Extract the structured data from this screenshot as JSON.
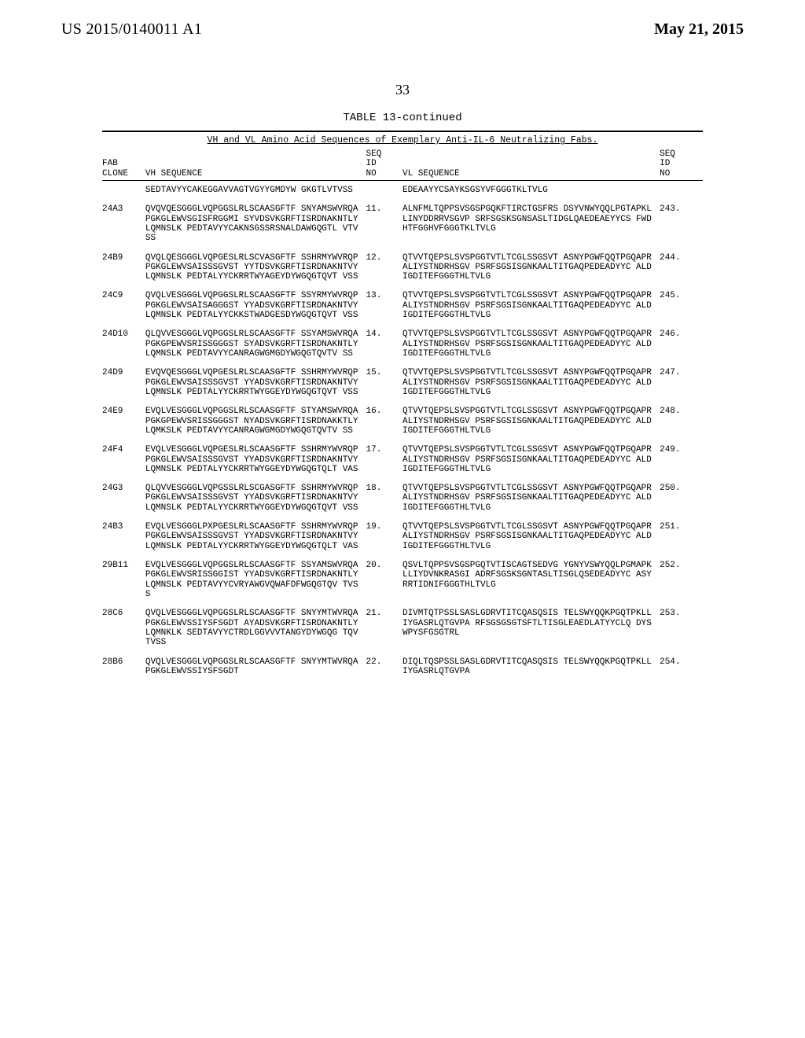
{
  "header": {
    "pub_number": "US 2015/0140011 A1",
    "pub_date": "May 21, 2015",
    "page_number": "33"
  },
  "table": {
    "caption": "TABLE 13-continued",
    "title": "VH and VL Amino Acid Sequences of Exemplary Anti-IL-6 Neutralizing Fabs.",
    "columns": {
      "clone": "FAB CLONE",
      "vh": "VH SEQUENCE",
      "seqid1_l1": "SEQ",
      "seqid1_l2": "ID",
      "seqid1_l3": "NO",
      "vl": "VL SEQUENCE",
      "seqid2_l1": "SEQ",
      "seqid2_l2": "ID",
      "seqid2_l3": "NO"
    },
    "rows": [
      {
        "clone": "",
        "vh": "SEDTAVYYCAKEGGAVVAGTVGYYGMDYW GKGTLVTVSS",
        "sid1": "",
        "vl": "EDEAAYYCSAYKSGSYVFGGGTKLTVLG",
        "sid2": ""
      },
      {
        "clone": "24A3",
        "vh": "QVQVQESGGGLVQPGGSLRLSCAASGFTF SNYAMSWVRQAPGKGLEWVSGISFRGGMI SYVDSVKGRFTISRDNAKNTLYLQMNSLK PEDTAVYYCAKNSGSSRSNALDAWGQGTL VTVSS",
        "sid1": "11.",
        "vl": "ALNFMLTQPPSVSGSPGQKFTIRCTGSFRS DSYVNWYQQLPGTAPKLLINYDDRRVSGVP SRFSGSKSGNSASLTIDGLQAEDEAEYYCS FWDHTFGGHVFGGGTKLTVLG",
        "sid2": "243."
      },
      {
        "clone": "24B9",
        "vh": "QVQLQESGGGLVQPGESLRLSCVASGFTF SSHRMYWVRQPPGKGLEWVSAISSSGVST YYTDSVKGRFTISRDNAKNTVYLQMNSLK PEDTALYYCKRRTWYAGEYDYWGQGTQVT VSS",
        "sid1": "12.",
        "vl": "QTVVTQEPSLSVSPGGTVTLTCGLSSGSVT ASNYPGWFQQTPGQAPRALIYSTNDRHSGV PSRFSGSISGNKAALTITGAQPEDEADYYC ALDIGDITEFGGGTHLTVLG",
        "sid2": "244."
      },
      {
        "clone": "24C9",
        "vh": "QVQLVESGGGLVQPGGSLRLSCAASGFTF SSYRMYWVRQPPGKGLEWVSAISAGGGST YYADSVKGRFTISRDNAKNTVYLQMNSLK PEDTALYYCKKSTWADGESDYWGQGTQVT VSS",
        "sid1": "13.",
        "vl": "QTVVTQEPSLSVSPGGTVTLTCGLSSGSVT ASNYPGWFQQTPGQAPRALIYSTNDRHSGV PSRFSGSISGNKAALTITGAQPEDEADYYC ALDIGDITEFGGGTHLTVLG",
        "sid2": "245."
      },
      {
        "clone": "24D10",
        "vh": "QLQVVESGGGLVQPGGSLRLSCAASGFTF SSYAMSWVRQAPGKGPEWVSRISSGGGST SYADSVKGRFTISRDNAKNTLYLQMNSLK PEDTAVYYCANRAGWGMGDYWGQGTQVTV SS",
        "sid1": "14.",
        "vl": "QTVVTQEPSLSVSPGGTVTLTCGLSSGSVT ASNYPGWFQQTPGQAPRALIYSTNDRHSGV PSRFSGSISGNKAALTITGAQPEDEADYYC ALDIGDITEFGGGTHLTVLG",
        "sid2": "246."
      },
      {
        "clone": "24D9",
        "vh": "EVQVQESGGGLVQPGESLRLSCAASGFTF SSHRMYWVRQPPGKGLEWVSAISSSGVST YYADSVKGRFTISRDNAKNTVYLQMNSLK PEDTALYYCKRRTWYGGEYDYWGQGTQVT VSS",
        "sid1": "15.",
        "vl": "QTVVTQEPSLSVSPGGTVTLTCGLSSGSVT ASNYPGWFQQTPGQAPRALIYSTNDRHSGV PSRFSGSISGNKAALTITGAQPEDEADYYC ALDIGDITEFGGGTHLTVLG",
        "sid2": "247."
      },
      {
        "clone": "24E9",
        "vh": "EVQLVESGGGLVQPGGSLRLSCAASGFTF STYAMSWVRQAPGKGPEWVSRISSGGGST NYADSVKGRFTISRDNAKKTLYLQMKSLK PEDTAVYYCANRAGWGMGDYWGQGTQVTV SS",
        "sid1": "16.",
        "vl": "QTVVTQEPSLSVSPGGTVTLTCGLSSGSVT ASNYPGWFQQTPGQAPRALIYSTNDRHSGV PSRFSGSISGNKAALTITGAQPEDEADYYC ALDIGDITEFGGGTHLTVLG",
        "sid2": "248."
      },
      {
        "clone": "24F4",
        "vh": "EVQLVESGGGLVQPGESLRLSCAASGFTF SSHRMYWVRQPPGKGLEWVSAISSSGVST YYADSVKGRFTISRDNAKNTVYLQMNSLK PEDTALYYCKRRTWYGGEYDYWGQGTQLT VAS",
        "sid1": "17.",
        "vl": "QTVVTQEPSLSVSPGGTVTLTCGLSSGSVT ASNYPGWFQQTPGQAPRALIYSTNDRHSGV PSRFSGSISGNKAALTITGAQPEDEADYYC ALDIGDITEFGGGTHLTVLG",
        "sid2": "249."
      },
      {
        "clone": "24G3",
        "vh": "QLQVVESGGGLVQPGSSLRLSCGASGFTF SSHRMYWVRQPPGKGLEWVSAISSSGVST YYADSVKGRFTISRDNAKNTVYLQMNSLK PEDTALYYCKRRTWYGGEYDYWGQGTQVT VSS",
        "sid1": "18.",
        "vl": "QTVVTQEPSLSVSPGGTVTLTCGLSSGSVT ASNYPGWFQQTPGQAPRALIYSTNDRHSGV PSRFSGSISGNKAALTITGAQPEDEADYYC ALDIGDITEFGGGTHLTVLG",
        "sid2": "250."
      },
      {
        "clone": "24B3",
        "vh": "EVQLVESGGGLPXPGESLRLSCAASGFTF SSHRMYWVRQPPGKGLEWVSAISSSGVST YYADSVKGRFTISRDNAKNTVYLQMNSLK PEDTALYYCKRRTWYGGEYDYWGQGTQLT VAS",
        "sid1": "19.",
        "vl": "QTVVTQEPSLSVSPGGTVTLTCGLSSGSVT ASNYPGWFQQTPGQAPRALIYSTNDRHSGV PSRFSGSISGNKAALTITGAQPEDEADYYC ALDIGDITEFGGGTHLTVLG",
        "sid2": "251."
      },
      {
        "clone": "29B11",
        "vh": "EVQLVESGGGLVQPGGSLRLSCAASGFTF SSYAMSWVRQAPGKGLEWVSRISSGGIST YYADSVKGRFTISRDNAKNTLYLQMNSLK PEDTAVYYCVRYAWGVQWAFDFWGQGTQV TVSS",
        "sid1": "20.",
        "vl": "QSVLTQPPSVSGSPGQTVTISCAGTSEDVG YGNYVSWYQQLPGMAPKLLIYDVNKRASGI ADRFSGSKSGNTASLTISGLQSEDEADYYC ASYRRTIDNIFGGGTHLTVLG",
        "sid2": "252."
      },
      {
        "clone": "28C6",
        "vh": "QVQLVESGGGLVQPGGSLRLSCAASGFTF SNYYMTWVRQAPGKGLEWVSSIYSFSGDT AYADSVKGRFTISRDNAKNTLYLQMNKLK SEDTAVYYCTRDLGGVVVTANGYDYWGQG TQVTVSS",
        "sid1": "21.",
        "vl": "DIVMTQTPSSLSASLGDRVTITCQASQSIS TELSWYQQKPGQTPKLLIYGASRLQTGVPA RFSGSGSGTSFTLTISGLEAEDLATYYCLQ DYSWPYSFGSGTRL",
        "sid2": "253."
      },
      {
        "clone": "28B6",
        "vh": "QVQLVESGGGLVQPGGSLRLSCAASGFTF SNYYMTWVRQAPGKGLEWVSSIYSFSGDT",
        "sid1": "22.",
        "vl": "DIQLTQSPSSLSASLGDRVTITCQASQSIS TELSWYQQKPGQTPKLLIYGASRLQTGVPA",
        "sid2": "254."
      }
    ]
  }
}
